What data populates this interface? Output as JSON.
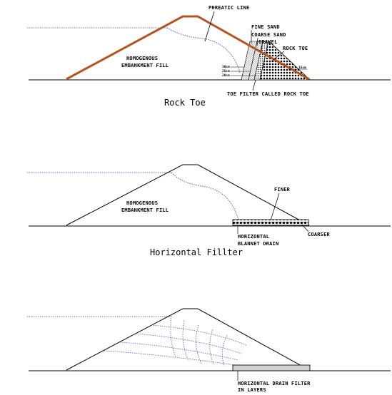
{
  "panels": {
    "rock_toe": {
      "caption": "Rock Toe",
      "phreatic_line": "PHREATIC LINE",
      "fill_line1": "HOMOGENOUS",
      "fill_line2": "EMBANKMENT FILL",
      "fine_sand": "FINE SAND",
      "coarse_sand": "COARSE SAND",
      "gravel": "GRAVEL",
      "rock_toe": "ROCK TOE",
      "dim_30": "30cm",
      "dim_25": "25cm",
      "dim_20": "20cm",
      "dim_15": "15cm",
      "toe_filter": "TOE FILTER CALLED ROCK TOE"
    },
    "horizontal_filter": {
      "caption": "Horizontal Fillter",
      "fill_line1": "HOMOGENOUS",
      "fill_line2": "EMBANKMENT FILL",
      "finer": "FINER",
      "drain_line1": "HORIZONTAL",
      "drain_line2": "BLANNET DRAIN",
      "coarser": "COARSER"
    },
    "layered_filter": {
      "drain_line1": "HORIZONTAL DRAIN FILTER",
      "drain_line2": "IN LAYERS"
    }
  },
  "colors": {
    "embankment_outline_rock_toe": "#b5531e",
    "phreatic_line": "#5a5aa8",
    "outline": "#000000"
  }
}
